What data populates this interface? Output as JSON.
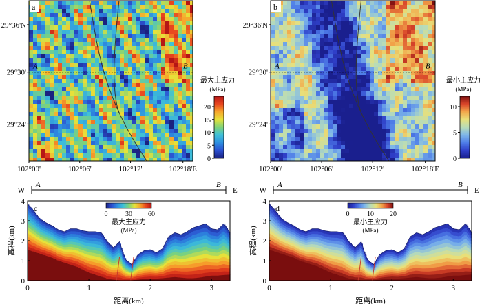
{
  "colorscale": {
    "jet": [
      "#1a2180",
      "#2b4fd0",
      "#2e8fe0",
      "#3fc0d8",
      "#7ed27a",
      "#e6e23a",
      "#f7a52c",
      "#e8461f",
      "#b51616"
    ],
    "blue_scheme": [
      "#1a1f8e",
      "#2f3fc8",
      "#4f7ee8",
      "#7fb7e8",
      "#b8dcb8",
      "#e8e07a",
      "#f2a64a",
      "#d9452a",
      "#7d1010"
    ]
  },
  "chart_data": [
    {
      "type": "heatmap",
      "panel_label": "a",
      "y_ticks": [
        "29°24'",
        "29°30'",
        "29°36'N"
      ],
      "x_ticks": [
        "102°00'",
        "102°06'",
        "102°12'",
        "102°18'E"
      ],
      "profile_line_labels": [
        "A",
        "B"
      ],
      "colorbar": {
        "title": [
          "最大主应力",
          "(MPa)"
        ],
        "ticks": [
          0,
          5,
          10,
          15,
          20
        ],
        "range": [
          0,
          24
        ]
      }
    },
    {
      "type": "heatmap",
      "panel_label": "b",
      "y_ticks": [
        "29°24'",
        "29°30'",
        "29°36'N"
      ],
      "x_ticks": [
        "102°00'",
        "102°06'",
        "102°12'",
        "102°18'E"
      ],
      "profile_line_labels": [
        "A",
        "B"
      ],
      "colorbar": {
        "title": [
          "最小主应力",
          "(MPa)"
        ],
        "ticks": [
          0,
          5,
          10
        ],
        "range": [
          0,
          12
        ]
      }
    },
    {
      "type": "area",
      "panel_label": "c",
      "direction_labels": [
        "W",
        "A",
        "B",
        "E"
      ],
      "xlabel": "距离(km)",
      "ylabel": "高程(km)",
      "xlim": [
        0,
        3.3
      ],
      "ylim": [
        0,
        4
      ],
      "x_ticks": [
        0,
        1,
        2,
        3
      ],
      "y_ticks": [
        0,
        1,
        2,
        3,
        4
      ],
      "x": [
        0,
        0.1,
        0.2,
        0.3,
        0.4,
        0.5,
        0.6,
        0.7,
        0.8,
        0.9,
        1.0,
        1.1,
        1.2,
        1.3,
        1.4,
        1.5,
        1.55,
        1.6,
        1.7,
        1.8,
        1.9,
        2.0,
        2.1,
        2.2,
        2.3,
        2.4,
        2.5,
        2.6,
        2.7,
        2.8,
        2.9,
        3.0,
        3.1,
        3.2,
        3.3
      ],
      "surface_elevation": [
        3.85,
        3.5,
        3.1,
        2.9,
        2.75,
        2.55,
        2.45,
        2.6,
        2.6,
        2.5,
        2.45,
        2.45,
        2.4,
        1.95,
        1.65,
        1.95,
        1.45,
        1.05,
        0.8,
        1.3,
        1.5,
        1.55,
        1.4,
        1.6,
        2.2,
        2.4,
        2.3,
        2.45,
        2.65,
        2.75,
        2.85,
        2.6,
        2.55,
        2.85,
        2.4
      ],
      "bottom_elevation": [
        1.55,
        1.45,
        1.35,
        1.25,
        1.15,
        1.0,
        0.9,
        0.8,
        0.7,
        0.55,
        0.4,
        0.3,
        0.2,
        0.1,
        0.05,
        0.02,
        0.01,
        0.01,
        0.02,
        0.05,
        0.08,
        0.1,
        0.1,
        0.12,
        0.15,
        0.18,
        0.15,
        0.12,
        0.12,
        0.15,
        0.2,
        0.25,
        0.25,
        0.28,
        0.3
      ],
      "fault_x": [
        1.45,
        1.68
      ],
      "colorbar": {
        "title": [
          "最大主应力",
          "(MPa)"
        ],
        "ticks": [
          0,
          30,
          60
        ],
        "range": [
          0,
          60
        ]
      }
    },
    {
      "type": "area",
      "panel_label": "d",
      "direction_labels": [
        "W",
        "A",
        "B",
        "E"
      ],
      "xlabel": "距离(km)",
      "ylabel": "高程(km)",
      "xlim": [
        0,
        3.3
      ],
      "ylim": [
        0,
        4
      ],
      "x_ticks": [
        0,
        1,
        2,
        3
      ],
      "y_ticks": [
        0,
        1,
        2,
        3,
        4
      ],
      "x": [
        0,
        0.1,
        0.2,
        0.3,
        0.4,
        0.5,
        0.6,
        0.7,
        0.8,
        0.9,
        1.0,
        1.1,
        1.2,
        1.3,
        1.4,
        1.5,
        1.55,
        1.6,
        1.7,
        1.8,
        1.9,
        2.0,
        2.1,
        2.2,
        2.3,
        2.4,
        2.5,
        2.6,
        2.7,
        2.8,
        2.9,
        3.0,
        3.1,
        3.2,
        3.3
      ],
      "surface_elevation": [
        3.85,
        3.5,
        3.1,
        2.9,
        2.75,
        2.55,
        2.45,
        2.6,
        2.6,
        2.5,
        2.45,
        2.45,
        2.4,
        1.95,
        1.65,
        1.95,
        1.45,
        1.05,
        0.8,
        1.3,
        1.5,
        1.55,
        1.4,
        1.6,
        2.2,
        2.4,
        2.3,
        2.45,
        2.65,
        2.75,
        2.85,
        2.6,
        2.55,
        2.85,
        2.4
      ],
      "bottom_elevation": [
        1.55,
        1.45,
        1.35,
        1.25,
        1.15,
        1.0,
        0.9,
        0.8,
        0.7,
        0.55,
        0.4,
        0.3,
        0.2,
        0.1,
        0.05,
        0.02,
        0.01,
        0.01,
        0.02,
        0.05,
        0.08,
        0.1,
        0.1,
        0.12,
        0.15,
        0.18,
        0.15,
        0.12,
        0.12,
        0.15,
        0.2,
        0.25,
        0.25,
        0.28,
        0.3
      ],
      "fault_x": [
        1.45,
        1.68
      ],
      "colorbar": {
        "title": [
          "最小主应力",
          "(MPa)"
        ],
        "ticks": [
          0,
          10,
          20
        ],
        "range": [
          0,
          20
        ]
      }
    }
  ]
}
